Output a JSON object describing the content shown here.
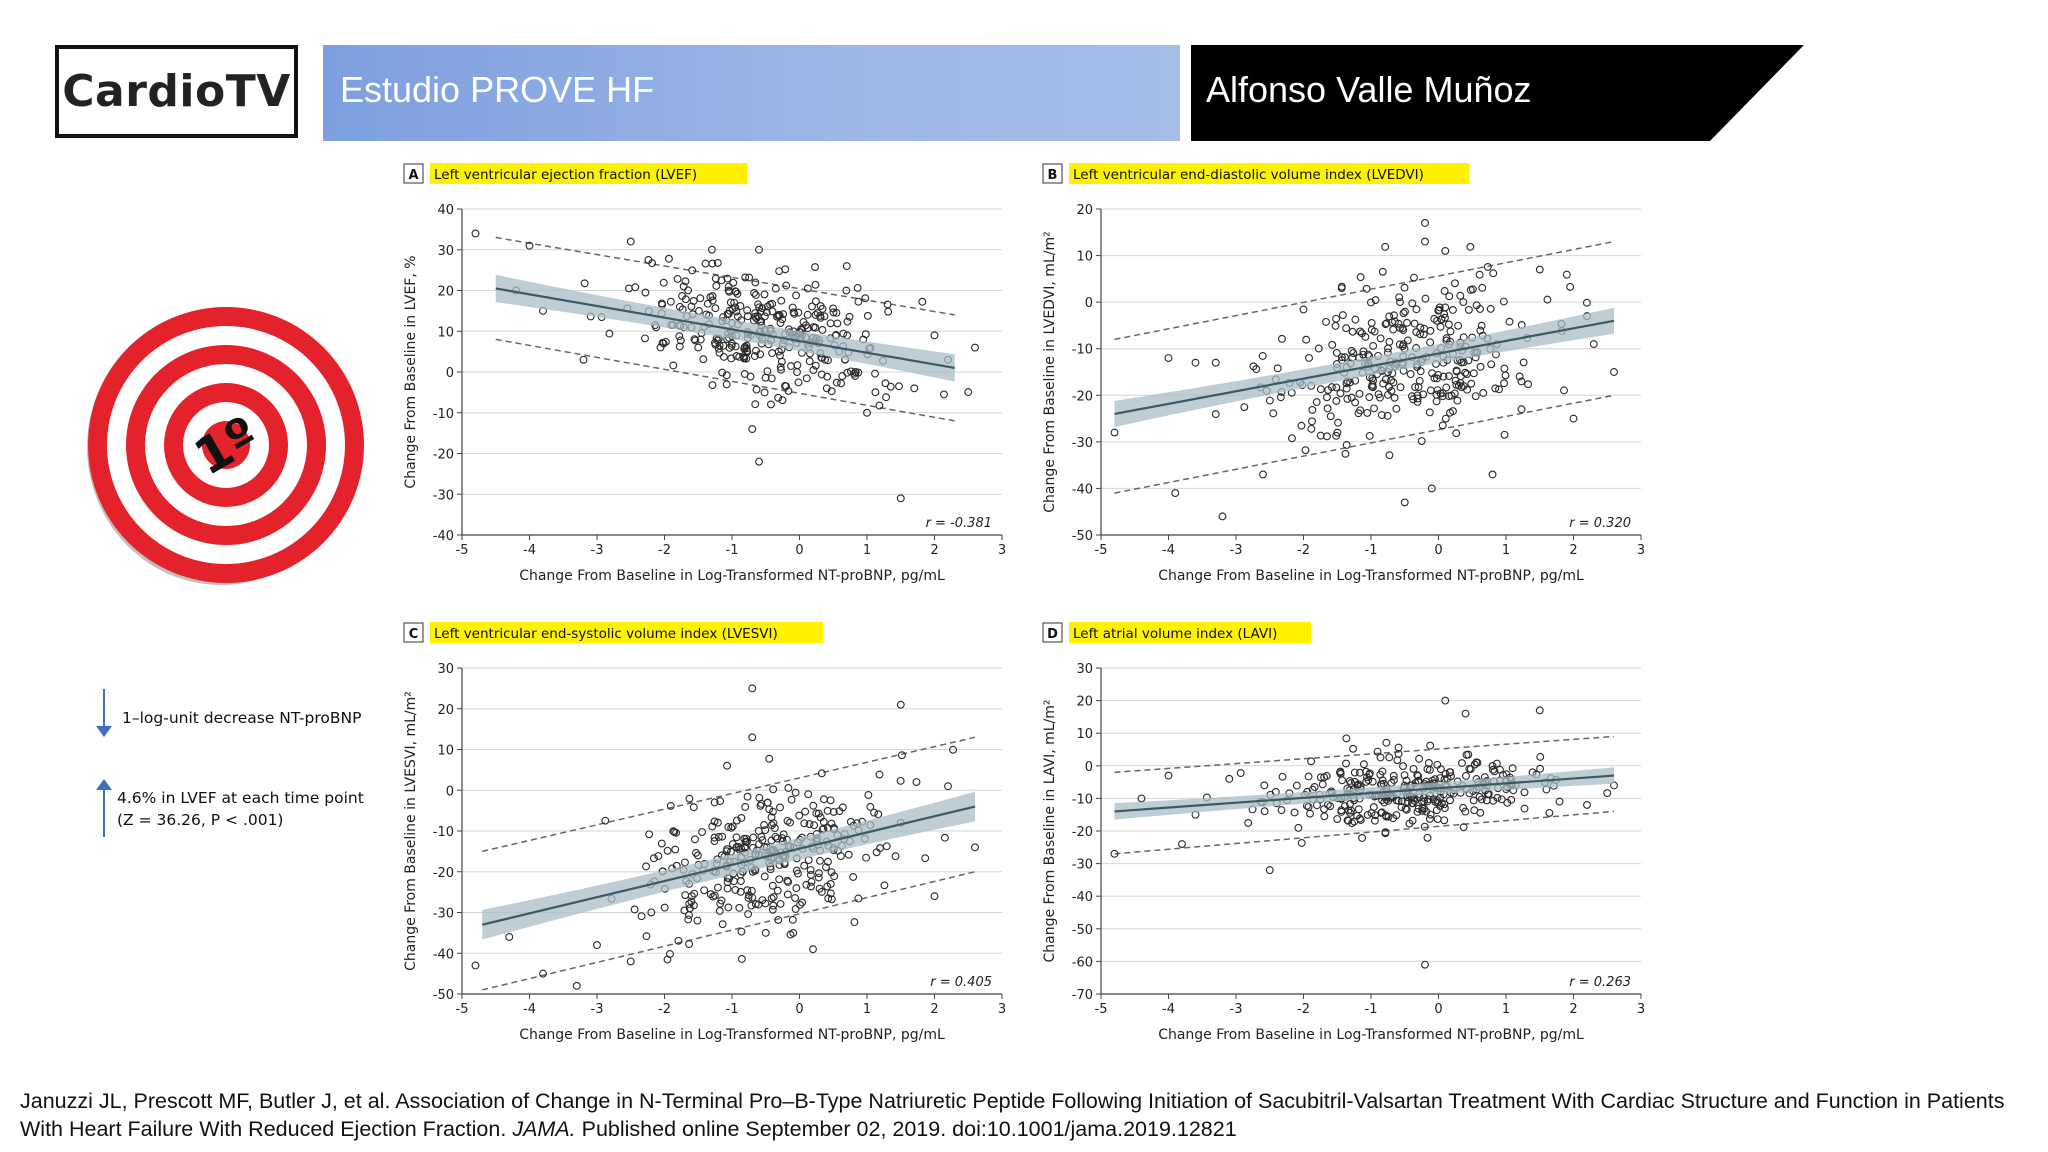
{
  "header": {
    "logo": "CardioTV",
    "title": "Estudio PROVE HF",
    "speaker": "Alfonso Valle Muñoz"
  },
  "target_label": "1º",
  "notes": {
    "decrease": "1–log-unit decrease NT-proBNP",
    "increase_line1": "4.6% in LVEF at each time point",
    "increase_line2": "(Z = 36.26, P < .001)"
  },
  "citation": {
    "part1": "Januzzi JL, Prescott MF, Butler J, et al. Association of Change in N-Terminal Pro–B-Type Natriuretic Peptide Following Initiation of Sacubitril-Valsartan Treatment With Cardiac Structure and Function in Patients With Heart Failure With Reduced Ejection Fraction.",
    "journal": "JAMA.",
    "part2": "Published online September 02, 2019. doi:10.1001/jama.2019.12821"
  },
  "colors": {
    "title_bar": "#8aa8e2",
    "speaker_bar": "#000000",
    "highlight": "#fff200",
    "target_red": "#e3222b",
    "regression_line": "#3d5a63",
    "confidence_band": "#a9bec6",
    "arrow": "#3f6fbf"
  },
  "chart_data": [
    {
      "type": "scatter",
      "panel": "A",
      "title": "Left ventricular ejection fraction (LVEF)",
      "xlabel": "Change From Baseline in Log-Transformed NT-proBNP, pg/mL",
      "ylabel": "Change From Baseline in LVEF, %",
      "xlim": [
        -5,
        3
      ],
      "ylim": [
        -40,
        40
      ],
      "xticks": [
        -5,
        -4,
        -3,
        -2,
        -1,
        0,
        1,
        2,
        3
      ],
      "yticks": [
        -40,
        -30,
        -20,
        -10,
        0,
        10,
        20,
        30,
        40
      ],
      "grid": true,
      "annotation": "r = -0.381",
      "regression": {
        "x": [
          -4.5,
          2.3
        ],
        "y": [
          20.5,
          1.0
        ]
      },
      "band_halfwidth": 2.4,
      "prediction_band": {
        "upper": [
          [
            -4.5,
            33
          ],
          [
            2.3,
            14
          ]
        ],
        "lower": [
          [
            -4.5,
            8
          ],
          [
            2.3,
            -12
          ]
        ]
      },
      "cloud": {
        "center_x": -0.5,
        "spread_x": 0.95,
        "intercept": 7.6,
        "slope": -2.87,
        "spread_y": 7.5,
        "count": 330
      },
      "points": [
        [
          -4.8,
          34
        ],
        [
          -4.2,
          20
        ],
        [
          -4.0,
          31
        ],
        [
          -3.8,
          15
        ],
        [
          -3.2,
          3
        ],
        [
          -2.5,
          32
        ],
        [
          -1.5,
          6
        ],
        [
          -1.0,
          12
        ],
        [
          -0.7,
          -14
        ],
        [
          -0.6,
          -22
        ],
        [
          -0.6,
          30
        ],
        [
          0.0,
          8
        ],
        [
          0.7,
          26
        ],
        [
          1.0,
          -10
        ],
        [
          1.5,
          -31
        ],
        [
          1.7,
          -4
        ],
        [
          2.2,
          3
        ],
        [
          2.6,
          6
        ],
        [
          2.0,
          9
        ]
      ]
    },
    {
      "type": "scatter",
      "panel": "B",
      "title": "Left ventricular end-diastolic volume index (LVEDVI)",
      "xlabel": "Change From Baseline in Log-Transformed NT-proBNP, pg/mL",
      "ylabel": "Change From Baseline in LVEDVI, mL/m²",
      "xlim": [
        -5,
        3
      ],
      "ylim": [
        -50,
        20
      ],
      "xticks": [
        -5,
        -4,
        -3,
        -2,
        -1,
        0,
        1,
        2,
        3
      ],
      "yticks": [
        -50,
        -40,
        -30,
        -20,
        -10,
        0,
        10,
        20
      ],
      "grid": true,
      "annotation": "r = 0.320",
      "regression": {
        "x": [
          -4.8,
          2.6
        ],
        "y": [
          -24,
          -4
        ]
      },
      "band_halfwidth": 2.0,
      "prediction_band": {
        "upper": [
          [
            -4.8,
            -8
          ],
          [
            2.6,
            13
          ]
        ],
        "lower": [
          [
            -4.8,
            -41
          ],
          [
            2.6,
            -20
          ]
        ]
      },
      "cloud": {
        "center_x": -0.5,
        "spread_x": 0.95,
        "intercept": -11,
        "slope": 2.7,
        "spread_y": 8,
        "count": 330
      },
      "points": [
        [
          -4.8,
          -28
        ],
        [
          -4.0,
          -12
        ],
        [
          -3.9,
          -41
        ],
        [
          -3.6,
          -13
        ],
        [
          -3.3,
          -13
        ],
        [
          -3.2,
          -46
        ],
        [
          -2.6,
          -37
        ],
        [
          -0.5,
          -43
        ],
        [
          -0.2,
          13
        ],
        [
          -0.2,
          17
        ],
        [
          -0.1,
          -40
        ],
        [
          0.1,
          11
        ],
        [
          0.8,
          -37
        ],
        [
          1.5,
          7
        ],
        [
          2.0,
          -25
        ],
        [
          2.3,
          -9
        ],
        [
          2.6,
          -15
        ],
        [
          2.2,
          -3
        ]
      ]
    },
    {
      "type": "scatter",
      "panel": "C",
      "title": "Left ventricular end-systolic volume index (LVESVI)",
      "xlabel": "Change From Baseline in Log-Transformed NT-proBNP, pg/mL",
      "ylabel": "Change From Baseline in LVESVI, mL/m²",
      "xlim": [
        -5,
        3
      ],
      "ylim": [
        -50,
        30
      ],
      "xticks": [
        -5,
        -4,
        -3,
        -2,
        -1,
        0,
        1,
        2,
        3
      ],
      "yticks": [
        -50,
        -40,
        -30,
        -20,
        -10,
        0,
        10,
        20,
        30
      ],
      "grid": true,
      "annotation": "r = 0.405",
      "regression": {
        "x": [
          -4.7,
          2.6
        ],
        "y": [
          -33,
          -4
        ]
      },
      "band_halfwidth": 2.6,
      "prediction_band": {
        "upper": [
          [
            -4.7,
            -15
          ],
          [
            2.6,
            13
          ]
        ],
        "lower": [
          [
            -4.7,
            -49
          ],
          [
            2.6,
            -20
          ]
        ]
      },
      "cloud": {
        "center_x": -0.5,
        "spread_x": 0.95,
        "intercept": -14.4,
        "slope": 3.97,
        "spread_y": 8,
        "count": 330
      },
      "points": [
        [
          -4.8,
          -43
        ],
        [
          -4.3,
          -36
        ],
        [
          -3.8,
          -45
        ],
        [
          -3.3,
          -48
        ],
        [
          -3.0,
          -38
        ],
        [
          -2.5,
          -42
        ],
        [
          -0.7,
          25
        ],
        [
          -0.7,
          13
        ],
        [
          -0.5,
          -35
        ],
        [
          0.2,
          -39
        ],
        [
          1.5,
          21
        ],
        [
          1.5,
          -8
        ],
        [
          2.0,
          -26
        ],
        [
          2.6,
          -14
        ],
        [
          2.2,
          1
        ]
      ]
    },
    {
      "type": "scatter",
      "panel": "D",
      "title": "Left atrial volume index (LAVI)",
      "xlabel": "Change From Baseline in Log-Transformed NT-proBNP, pg/mL",
      "ylabel": "Change From Baseline in LAVI, mL/m²",
      "xlim": [
        -5,
        3
      ],
      "ylim": [
        -70,
        30
      ],
      "xticks": [
        -5,
        -4,
        -3,
        -2,
        -1,
        0,
        1,
        2,
        3
      ],
      "yticks": [
        -70,
        -60,
        -50,
        -40,
        -30,
        -20,
        -10,
        0,
        10,
        20,
        30
      ],
      "grid": true,
      "annotation": "r = 0.263",
      "regression": {
        "x": [
          -4.8,
          2.6
        ],
        "y": [
          -14,
          -3
        ]
      },
      "band_halfwidth": 1.8,
      "prediction_band": {
        "upper": [
          [
            -4.8,
            -2
          ],
          [
            2.6,
            9
          ]
        ],
        "lower": [
          [
            -4.8,
            -27
          ],
          [
            2.6,
            -14
          ]
        ]
      },
      "cloud": {
        "center_x": -0.5,
        "spread_x": 0.95,
        "intercept": -7.4,
        "slope": 1.49,
        "spread_y": 5,
        "count": 330
      },
      "points": [
        [
          -4.8,
          -27
        ],
        [
          -4.4,
          -10
        ],
        [
          -4.0,
          -3
        ],
        [
          -3.8,
          -24
        ],
        [
          -3.6,
          -15
        ],
        [
          -3.1,
          -4
        ],
        [
          -2.5,
          -32
        ],
        [
          -0.2,
          -61
        ],
        [
          0.1,
          20
        ],
        [
          0.4,
          16
        ],
        [
          1.5,
          17
        ],
        [
          2.2,
          -12
        ],
        [
          2.6,
          -6
        ]
      ]
    }
  ]
}
